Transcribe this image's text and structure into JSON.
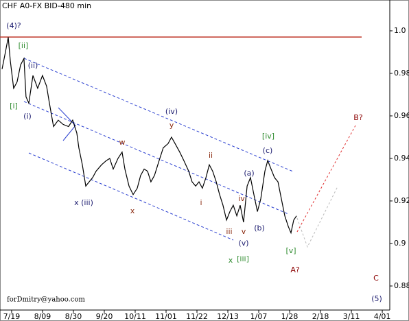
{
  "chart_data": {
    "type": "line",
    "title": "CHF A0-FX BID-480 min",
    "footer": "forDmitry@yahoo.com",
    "x": [
      -6.5,
      -4.2,
      -2.3,
      -0.9,
      1.4,
      3.7,
      6.1,
      8.4,
      9.8,
      11.7,
      14.5,
      17.7,
      21,
      23.8,
      25.7,
      28.5,
      31.7,
      35,
      38.7,
      41.5,
      44.3,
      45.7,
      48.1,
      50.4,
      52.7,
      55.1,
      57.4,
      61.1,
      64.4,
      66.7,
      69.1,
      72.3,
      75.1,
      77,
      79.8,
      82.6,
      85.4,
      87.7,
      90.1,
      92.4,
      94.7,
      97.1,
      100.3,
      103.1,
      106.4,
      108.7,
      111.1,
      114.3,
      117.1,
      120.4,
      122.7,
      125.1,
      127.4,
      129.7,
      132.1,
      134.4,
      136.7,
      139.1,
      141.4,
      143.7,
      146.1,
      148.4,
      150.7,
      153.1,
      155.4,
      157.7,
      160.1,
      162.4,
      164.7,
      167.1,
      169.4,
      172.2,
      174.1,
      176.4,
      178.7,
      181.1,
      183.4,
      185.7,
      188.1,
      189.9,
      191.8,
      193.7
    ],
    "series": [
      {
        "color": "#000000",
        "values": [
          0.982,
          0.99,
          0.997,
          0.986,
          0.973,
          0.976,
          0.984,
          0.987,
          0.969,
          0.966,
          0.979,
          0.973,
          0.979,
          0.974,
          0.966,
          0.955,
          0.958,
          0.956,
          0.955,
          0.958,
          0.952,
          0.945,
          0.937,
          0.927,
          0.929,
          0.931,
          0.934,
          0.937,
          0.939,
          0.94,
          0.935,
          0.94,
          0.943,
          0.935,
          0.927,
          0.923,
          0.926,
          0.932,
          0.935,
          0.934,
          0.929,
          0.932,
          0.939,
          0.945,
          0.947,
          0.95,
          0.947,
          0.943,
          0.939,
          0.934,
          0.929,
          0.927,
          0.929,
          0.926,
          0.931,
          0.937,
          0.934,
          0.929,
          0.923,
          0.918,
          0.911,
          0.915,
          0.918,
          0.913,
          0.918,
          0.91,
          0.927,
          0.931,
          0.923,
          0.915,
          0.921,
          0.934,
          0.939,
          0.935,
          0.931,
          0.929,
          0.921,
          0.913,
          0.908,
          0.905,
          0.911,
          0.913
        ]
      }
    ],
    "xlim": [
      -7.9,
      257.1
    ],
    "xticks": [
      {
        "value": 0,
        "label": "7/19"
      },
      {
        "value": 21,
        "label": "8/09"
      },
      {
        "value": 42,
        "label": "8/30"
      },
      {
        "value": 63,
        "label": "9/20"
      },
      {
        "value": 84,
        "label": "10/11"
      },
      {
        "value": 105,
        "label": "11/01"
      },
      {
        "value": 126,
        "label": "11/22"
      },
      {
        "value": 147,
        "label": "12/13"
      },
      {
        "value": 168,
        "label": "1/07"
      },
      {
        "value": 189,
        "label": "1/28"
      },
      {
        "value": 210,
        "label": "2/18"
      },
      {
        "value": 231,
        "label": "3/11"
      },
      {
        "value": 252,
        "label": "4/01"
      }
    ],
    "ylim": [
      0.8687,
      1.0145
    ],
    "yticks": [
      0.88,
      0.9,
      0.92,
      0.94,
      0.96,
      0.98,
      {
        "value": 1,
        "label": "1.0"
      }
    ],
    "annotations": [
      {
        "text": "(4)?",
        "color": "#1a1a6e"
      },
      {
        "text": "[ii]",
        "color": "#2e8b2e"
      },
      {
        "text": "(ii)",
        "color": "#1a1a6e"
      },
      {
        "text": "[i]",
        "color": "#2e8b2e"
      },
      {
        "text": "(i)",
        "color": "#1a1a6e"
      },
      {
        "text": "(iv)",
        "color": "#1a1a6e"
      },
      {
        "text": "y",
        "color": "#8b2a10"
      },
      {
        "text": "w",
        "color": "#8b2a10"
      },
      {
        "text": "x (iii)",
        "color": "#1a1a6e"
      },
      {
        "text": "x",
        "color": "#8b2a10"
      },
      {
        "text": "[iv]",
        "color": "#2e8b2e"
      },
      {
        "text": "(c)",
        "color": "#1a1a6e"
      },
      {
        "text": "B?",
        "color": "#8b0000"
      },
      {
        "text": "ii",
        "color": "#8b2a10"
      },
      {
        "text": "(a)",
        "color": "#1a1a6e"
      },
      {
        "text": "i",
        "color": "#8b2a10"
      },
      {
        "text": "iv",
        "color": "#8b2a10"
      },
      {
        "text": "(b)",
        "color": "#1a1a6e"
      },
      {
        "text": "v",
        "color": "#8b2a10"
      },
      {
        "text": "iii",
        "color": "#8b2a10"
      },
      {
        "text": "(v)",
        "color": "#1a1a6e"
      },
      {
        "text": "x",
        "color": "#2e8b2e"
      },
      {
        "text": "[iii]",
        "color": "#2e8b2e"
      },
      {
        "text": "[v]",
        "color": "#2e8b2e"
      },
      {
        "text": "A?",
        "color": "#8b0000"
      },
      {
        "text": "C",
        "color": "#8b0000"
      },
      {
        "text": "(5)",
        "color": "#1a1a6e"
      }
    ]
  }
}
